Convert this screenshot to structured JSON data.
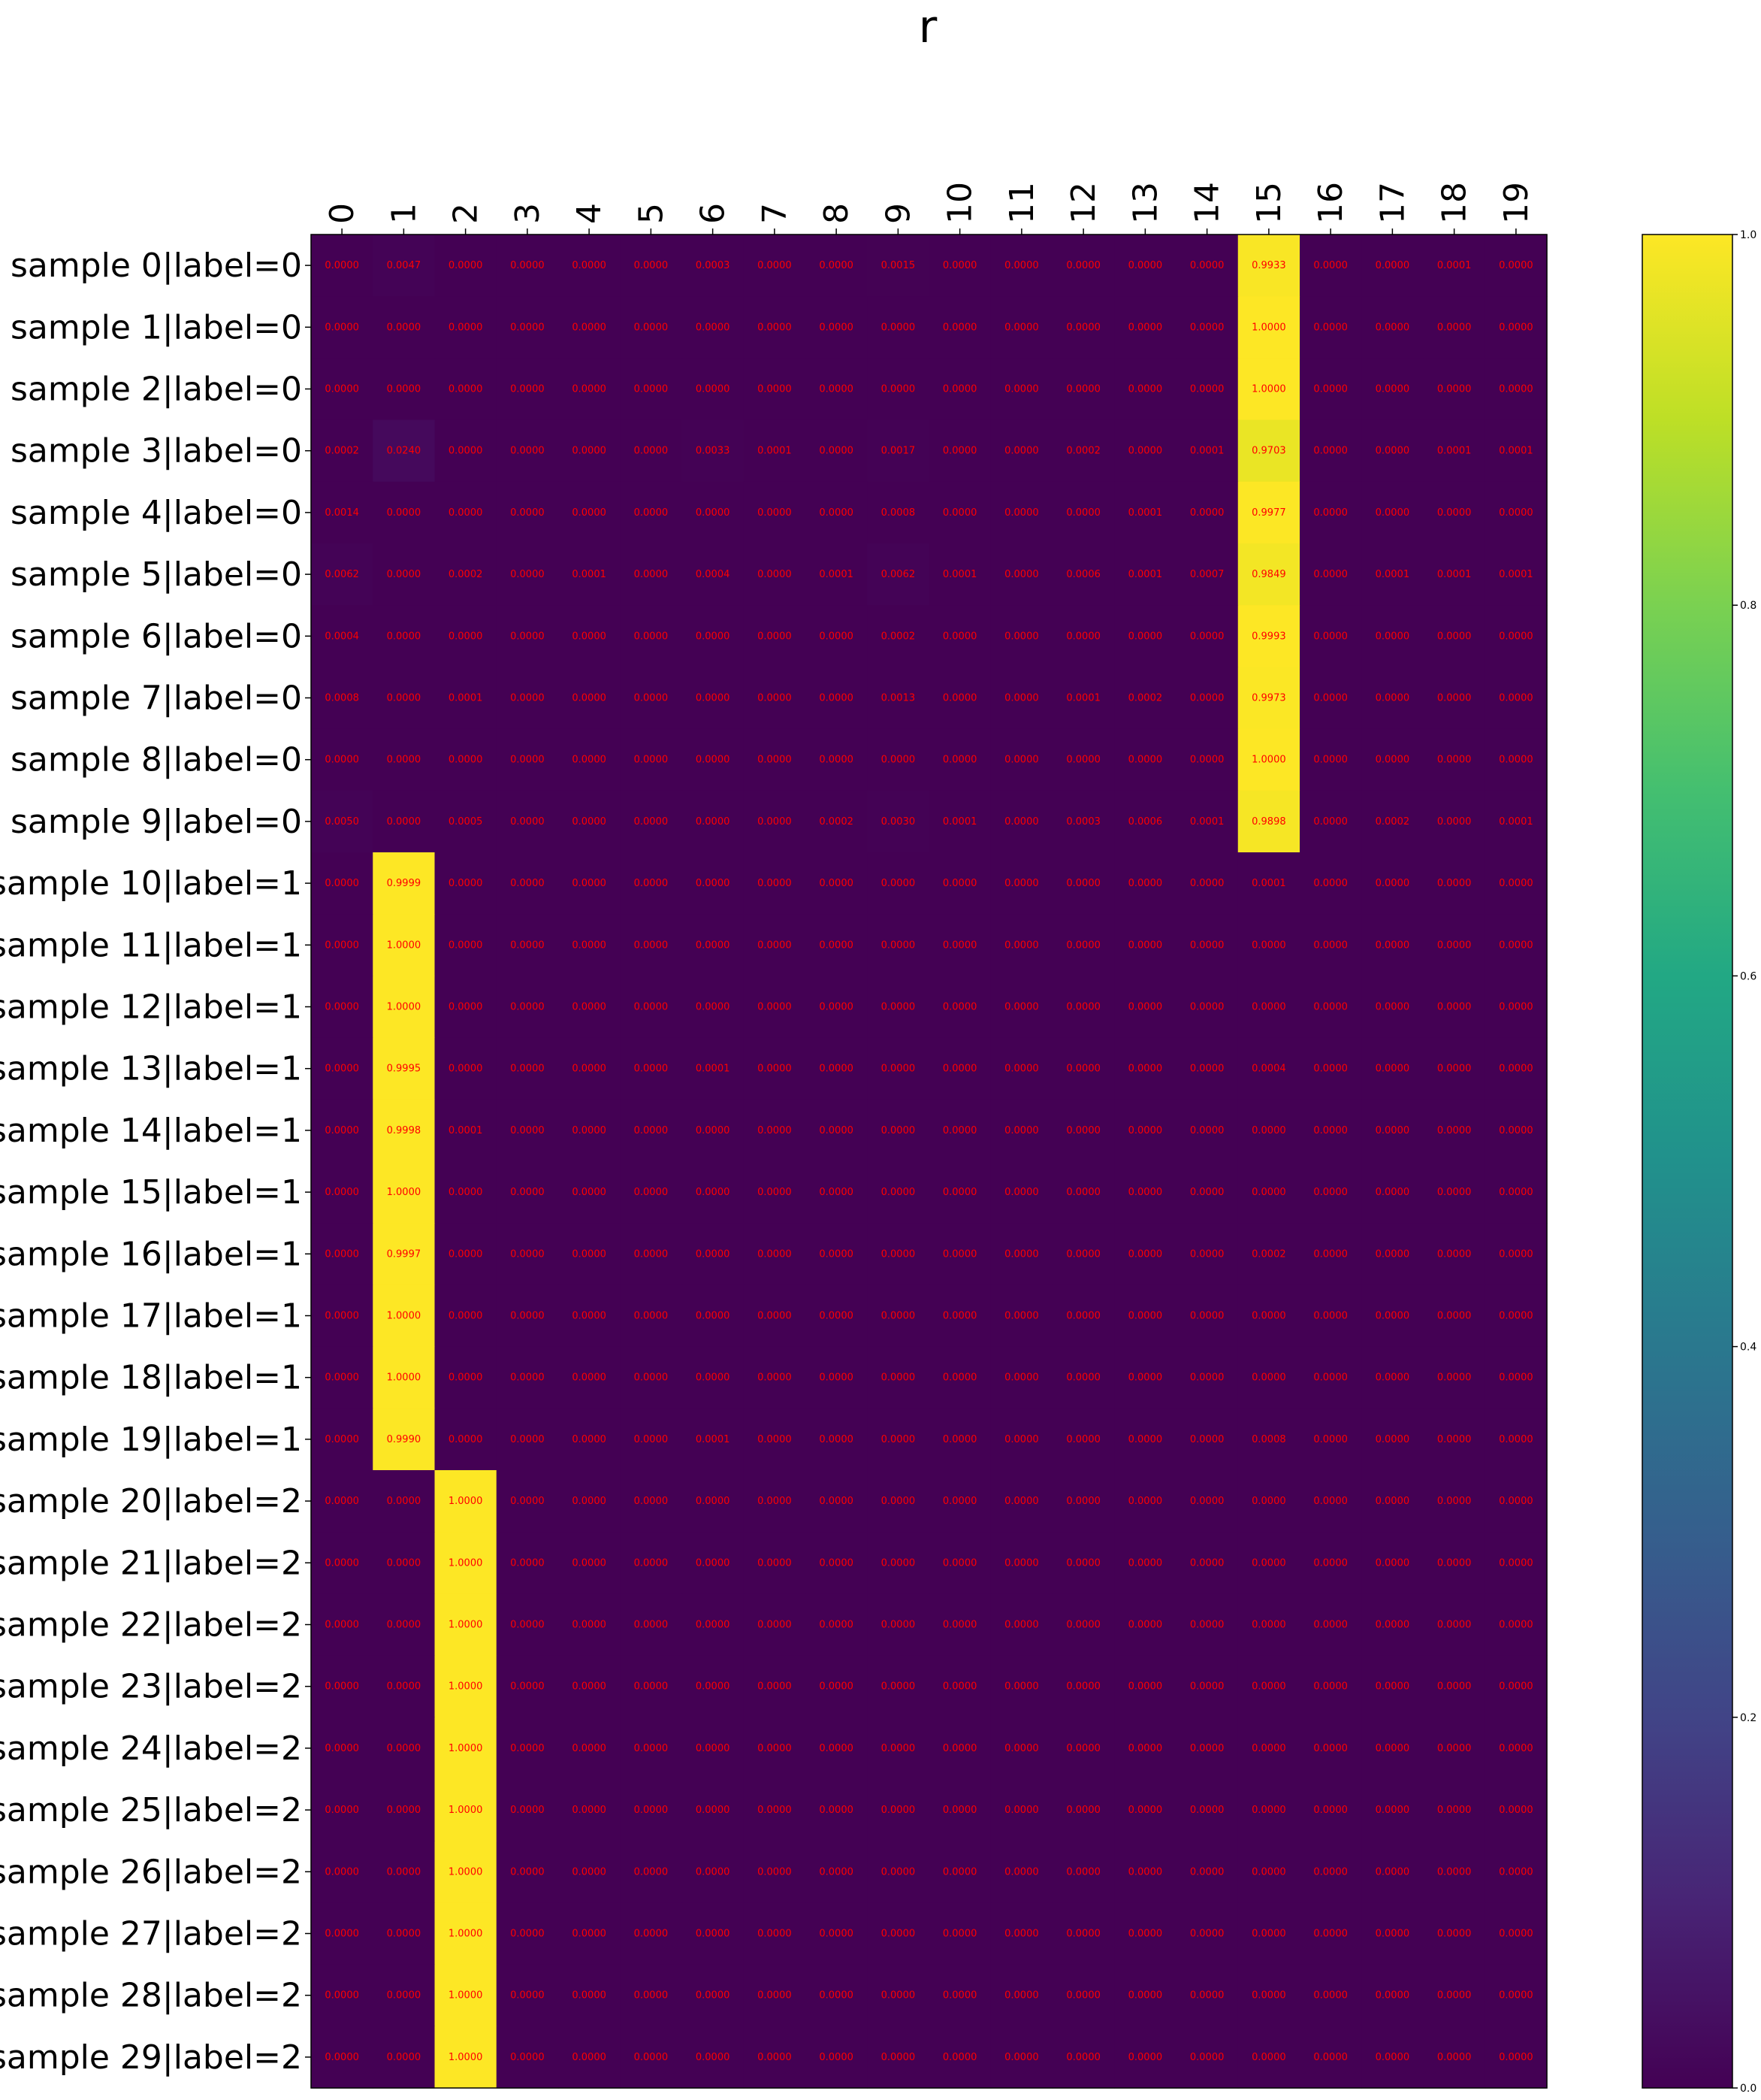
{
  "chart_data": {
    "type": "heatmap",
    "title": "r",
    "columns": [
      "0",
      "1",
      "2",
      "3",
      "4",
      "5",
      "6",
      "7",
      "8",
      "9",
      "10",
      "11",
      "12",
      "13",
      "14",
      "15",
      "16",
      "17",
      "18",
      "19"
    ],
    "rows": [
      "sample 0|label=0",
      "sample 1|label=0",
      "sample 2|label=0",
      "sample 3|label=0",
      "sample 4|label=0",
      "sample 5|label=0",
      "sample 6|label=0",
      "sample 7|label=0",
      "sample 8|label=0",
      "sample 9|label=0",
      "sample 10|label=1",
      "sample 11|label=1",
      "sample 12|label=1",
      "sample 13|label=1",
      "sample 14|label=1",
      "sample 15|label=1",
      "sample 16|label=1",
      "sample 17|label=1",
      "sample 18|label=1",
      "sample 19|label=1",
      "sample 20|label=2",
      "sample 21|label=2",
      "sample 22|label=2",
      "sample 23|label=2",
      "sample 24|label=2",
      "sample 25|label=2",
      "sample 26|label=2",
      "sample 27|label=2",
      "sample 28|label=2",
      "sample 29|label=2"
    ],
    "values": [
      [
        0.0,
        0.0047,
        0.0,
        0.0,
        0.0,
        0.0,
        0.0003,
        0.0,
        0.0,
        0.0015,
        0.0,
        0.0,
        0.0,
        0.0,
        0.0,
        0.9933,
        0.0,
        0.0,
        0.0001,
        0.0
      ],
      [
        0.0,
        0.0,
        0.0,
        0.0,
        0.0,
        0.0,
        0.0,
        0.0,
        0.0,
        0.0,
        0.0,
        0.0,
        0.0,
        0.0,
        0.0,
        1.0,
        0.0,
        0.0,
        0.0,
        0.0
      ],
      [
        0.0,
        0.0,
        0.0,
        0.0,
        0.0,
        0.0,
        0.0,
        0.0,
        0.0,
        0.0,
        0.0,
        0.0,
        0.0,
        0.0,
        0.0,
        1.0,
        0.0,
        0.0,
        0.0,
        0.0
      ],
      [
        0.0002,
        0.024,
        0.0,
        0.0,
        0.0,
        0.0,
        0.0033,
        0.0001,
        0.0,
        0.0017,
        0.0,
        0.0,
        0.0002,
        0.0,
        0.0001,
        0.9703,
        0.0,
        0.0,
        0.0001,
        0.0001
      ],
      [
        0.0014,
        0.0,
        0.0,
        0.0,
        0.0,
        0.0,
        0.0,
        0.0,
        0.0,
        0.0008,
        0.0,
        0.0,
        0.0,
        0.0001,
        0.0,
        0.9977,
        0.0,
        0.0,
        0.0,
        0.0
      ],
      [
        0.0062,
        0.0,
        0.0002,
        0.0,
        0.0001,
        0.0,
        0.0004,
        0.0,
        0.0001,
        0.0062,
        0.0001,
        0.0,
        0.0006,
        0.0001,
        0.0007,
        0.9849,
        0.0,
        0.0001,
        0.0001,
        0.0001
      ],
      [
        0.0004,
        0.0,
        0.0,
        0.0,
        0.0,
        0.0,
        0.0,
        0.0,
        0.0,
        0.0002,
        0.0,
        0.0,
        0.0,
        0.0,
        0.0,
        0.9993,
        0.0,
        0.0,
        0.0,
        0.0
      ],
      [
        0.0008,
        0.0,
        0.0001,
        0.0,
        0.0,
        0.0,
        0.0,
        0.0,
        0.0,
        0.0013,
        0.0,
        0.0,
        0.0001,
        0.0002,
        0.0,
        0.9973,
        0.0,
        0.0,
        0.0,
        0.0
      ],
      [
        0.0,
        0.0,
        0.0,
        0.0,
        0.0,
        0.0,
        0.0,
        0.0,
        0.0,
        0.0,
        0.0,
        0.0,
        0.0,
        0.0,
        0.0,
        1.0,
        0.0,
        0.0,
        0.0,
        0.0
      ],
      [
        0.005,
        0.0,
        0.0005,
        0.0,
        0.0,
        0.0,
        0.0,
        0.0,
        0.0002,
        0.003,
        0.0001,
        0.0,
        0.0003,
        0.0006,
        0.0001,
        0.9898,
        0.0,
        0.0002,
        0.0,
        0.0001
      ],
      [
        0.0,
        0.9999,
        0.0,
        0.0,
        0.0,
        0.0,
        0.0,
        0.0,
        0.0,
        0.0,
        0.0,
        0.0,
        0.0,
        0.0,
        0.0,
        0.0001,
        0.0,
        0.0,
        0.0,
        0.0
      ],
      [
        0.0,
        1.0,
        0.0,
        0.0,
        0.0,
        0.0,
        0.0,
        0.0,
        0.0,
        0.0,
        0.0,
        0.0,
        0.0,
        0.0,
        0.0,
        0.0,
        0.0,
        0.0,
        0.0,
        0.0
      ],
      [
        0.0,
        1.0,
        0.0,
        0.0,
        0.0,
        0.0,
        0.0,
        0.0,
        0.0,
        0.0,
        0.0,
        0.0,
        0.0,
        0.0,
        0.0,
        0.0,
        0.0,
        0.0,
        0.0,
        0.0
      ],
      [
        0.0,
        0.9995,
        0.0,
        0.0,
        0.0,
        0.0,
        0.0001,
        0.0,
        0.0,
        0.0,
        0.0,
        0.0,
        0.0,
        0.0,
        0.0,
        0.0004,
        0.0,
        0.0,
        0.0,
        0.0
      ],
      [
        0.0,
        0.9998,
        0.0001,
        0.0,
        0.0,
        0.0,
        0.0,
        0.0,
        0.0,
        0.0,
        0.0,
        0.0,
        0.0,
        0.0,
        0.0,
        0.0,
        0.0,
        0.0,
        0.0,
        0.0
      ],
      [
        0.0,
        1.0,
        0.0,
        0.0,
        0.0,
        0.0,
        0.0,
        0.0,
        0.0,
        0.0,
        0.0,
        0.0,
        0.0,
        0.0,
        0.0,
        0.0,
        0.0,
        0.0,
        0.0,
        0.0
      ],
      [
        0.0,
        0.9997,
        0.0,
        0.0,
        0.0,
        0.0,
        0.0,
        0.0,
        0.0,
        0.0,
        0.0,
        0.0,
        0.0,
        0.0,
        0.0,
        0.0002,
        0.0,
        0.0,
        0.0,
        0.0
      ],
      [
        0.0,
        1.0,
        0.0,
        0.0,
        0.0,
        0.0,
        0.0,
        0.0,
        0.0,
        0.0,
        0.0,
        0.0,
        0.0,
        0.0,
        0.0,
        0.0,
        0.0,
        0.0,
        0.0,
        0.0
      ],
      [
        0.0,
        1.0,
        0.0,
        0.0,
        0.0,
        0.0,
        0.0,
        0.0,
        0.0,
        0.0,
        0.0,
        0.0,
        0.0,
        0.0,
        0.0,
        0.0,
        0.0,
        0.0,
        0.0,
        0.0
      ],
      [
        0.0,
        0.999,
        0.0,
        0.0,
        0.0,
        0.0,
        0.0001,
        0.0,
        0.0,
        0.0,
        0.0,
        0.0,
        0.0,
        0.0,
        0.0,
        0.0008,
        0.0,
        0.0,
        0.0,
        0.0
      ],
      [
        0.0,
        0.0,
        1.0,
        0.0,
        0.0,
        0.0,
        0.0,
        0.0,
        0.0,
        0.0,
        0.0,
        0.0,
        0.0,
        0.0,
        0.0,
        0.0,
        0.0,
        0.0,
        0.0,
        0.0
      ],
      [
        0.0,
        0.0,
        1.0,
        0.0,
        0.0,
        0.0,
        0.0,
        0.0,
        0.0,
        0.0,
        0.0,
        0.0,
        0.0,
        0.0,
        0.0,
        0.0,
        0.0,
        0.0,
        0.0,
        0.0
      ],
      [
        0.0,
        0.0,
        1.0,
        0.0,
        0.0,
        0.0,
        0.0,
        0.0,
        0.0,
        0.0,
        0.0,
        0.0,
        0.0,
        0.0,
        0.0,
        0.0,
        0.0,
        0.0,
        0.0,
        0.0
      ],
      [
        0.0,
        0.0,
        1.0,
        0.0,
        0.0,
        0.0,
        0.0,
        0.0,
        0.0,
        0.0,
        0.0,
        0.0,
        0.0,
        0.0,
        0.0,
        0.0,
        0.0,
        0.0,
        0.0,
        0.0
      ],
      [
        0.0,
        0.0,
        1.0,
        0.0,
        0.0,
        0.0,
        0.0,
        0.0,
        0.0,
        0.0,
        0.0,
        0.0,
        0.0,
        0.0,
        0.0,
        0.0,
        0.0,
        0.0,
        0.0,
        0.0
      ],
      [
        0.0,
        0.0,
        1.0,
        0.0,
        0.0,
        0.0,
        0.0,
        0.0,
        0.0,
        0.0,
        0.0,
        0.0,
        0.0,
        0.0,
        0.0,
        0.0,
        0.0,
        0.0,
        0.0,
        0.0
      ],
      [
        0.0,
        0.0,
        1.0,
        0.0,
        0.0,
        0.0,
        0.0,
        0.0,
        0.0,
        0.0,
        0.0,
        0.0,
        0.0,
        0.0,
        0.0,
        0.0,
        0.0,
        0.0,
        0.0,
        0.0
      ],
      [
        0.0,
        0.0,
        1.0,
        0.0,
        0.0,
        0.0,
        0.0,
        0.0,
        0.0,
        0.0,
        0.0,
        0.0,
        0.0,
        0.0,
        0.0,
        0.0,
        0.0,
        0.0,
        0.0,
        0.0
      ],
      [
        0.0,
        0.0,
        1.0,
        0.0,
        0.0,
        0.0,
        0.0,
        0.0,
        0.0,
        0.0,
        0.0,
        0.0,
        0.0,
        0.0,
        0.0,
        0.0,
        0.0,
        0.0,
        0.0,
        0.0
      ],
      [
        0.0,
        0.0,
        1.0,
        0.0,
        0.0,
        0.0,
        0.0,
        0.0,
        0.0,
        0.0,
        0.0,
        0.0,
        0.0,
        0.0,
        0.0,
        0.0,
        0.0,
        0.0,
        0.0,
        0.0
      ]
    ],
    "value_format_decimals": 4,
    "annotation_color": "#ff0000",
    "colormap": "viridis",
    "colorbar": {
      "range": [
        0.0,
        1.0
      ],
      "ticks": [
        0.0,
        0.2,
        0.4,
        0.6,
        0.8,
        1.0
      ],
      "tick_labels": [
        "0.0",
        "0.2",
        "0.4",
        "0.6",
        "0.8",
        "1.0"
      ]
    },
    "x_tick_position": "top",
    "x_tick_rotation": "vertical",
    "grid": false
  }
}
